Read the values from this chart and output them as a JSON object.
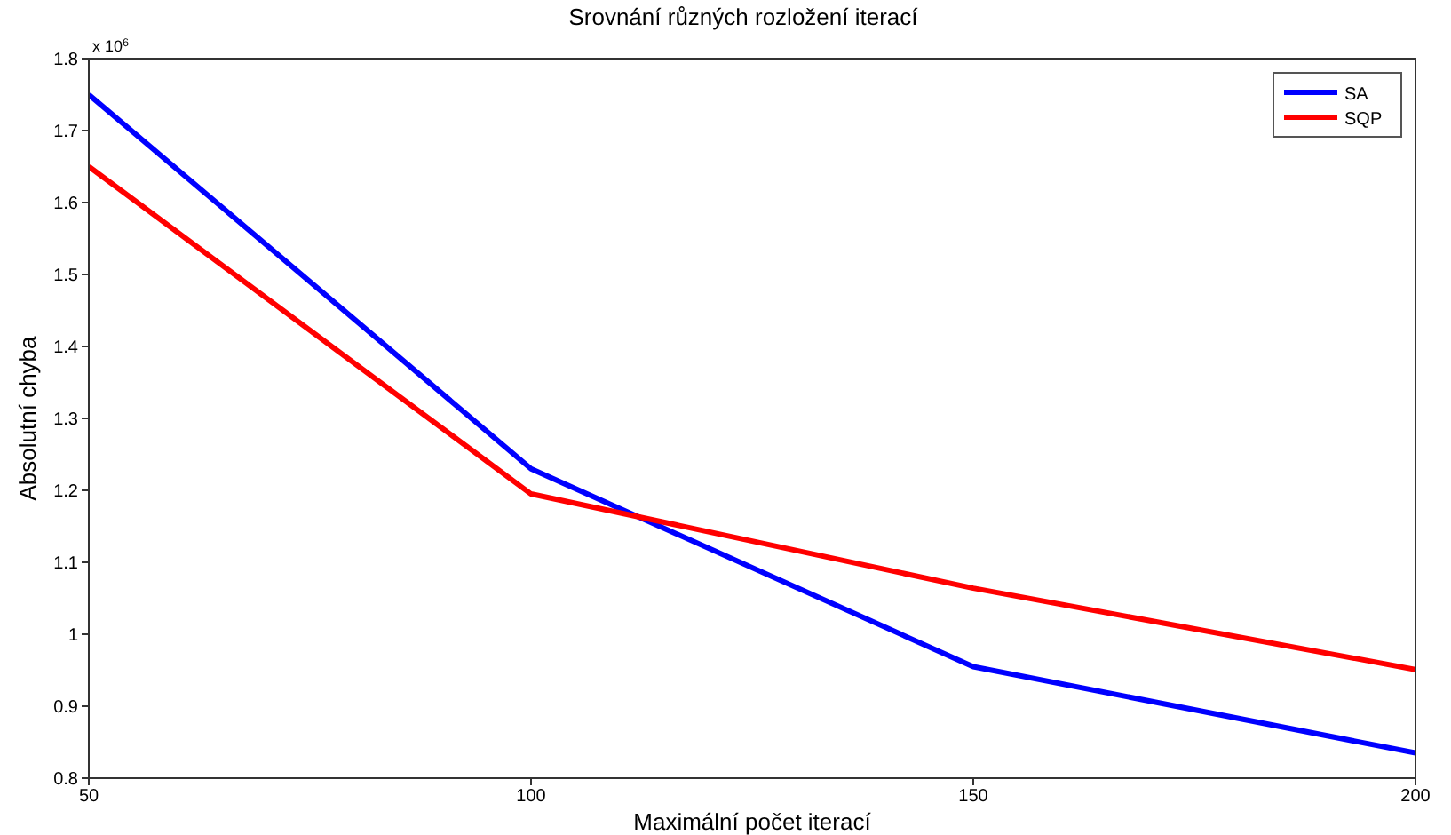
{
  "chart_data": {
    "type": "line",
    "title": "Srovnání různých rozložení iterací",
    "xlabel": "Maximální počet iterací",
    "ylabel": "Absolutní chyba",
    "annotations": [
      "x 10$^{6}$"
    ],
    "x": [
      50,
      100,
      150,
      200
    ],
    "series": [
      {
        "name": "SA",
        "color": "#0000ff",
        "values": [
          1.75,
          1.23,
          0.955,
          0.835
        ]
      },
      {
        "name": "SQP",
        "color": "#ff0000",
        "values": [
          1.65,
          1.195,
          1.064,
          0.951
        ]
      }
    ],
    "xlim": [
      50,
      200
    ],
    "xticks": [
      50,
      100,
      150,
      200
    ],
    "ylim": [
      0.8,
      1.8
    ],
    "yticks": [
      0.8,
      0.9,
      1,
      1.1,
      1.2,
      1.3,
      1.4,
      1.5,
      1.6,
      1.7,
      1.8
    ],
    "grid": false,
    "legend": "top right",
    "marker": "none",
    "line_style": "solid"
  }
}
